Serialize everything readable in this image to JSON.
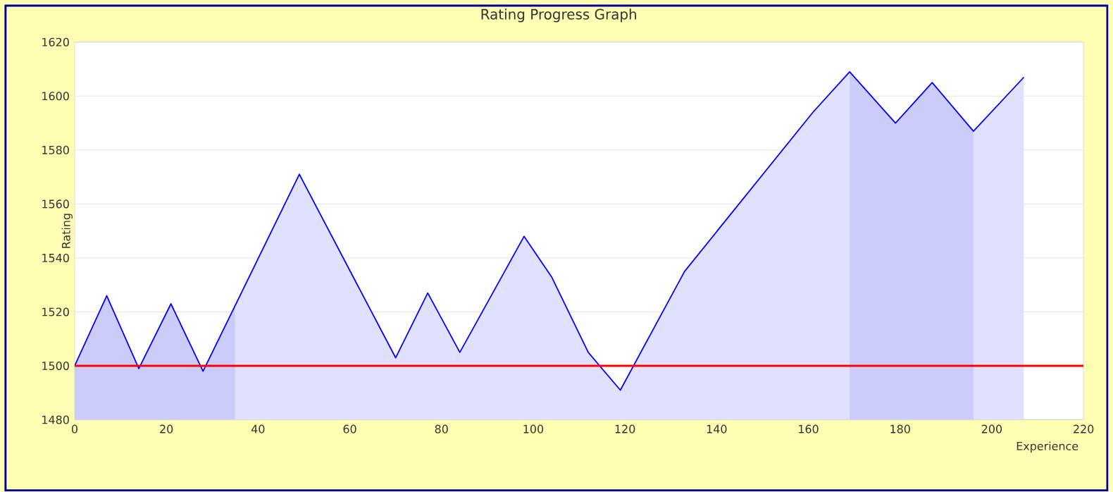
{
  "chart_data": {
    "type": "area",
    "title": "Rating Progress Graph",
    "xlabel": "Experience",
    "ylabel": "Rating",
    "x": [
      0,
      7,
      14,
      21,
      28,
      49,
      70,
      77,
      84,
      98,
      104,
      112,
      119,
      133,
      161,
      169,
      179,
      187,
      196,
      207
    ],
    "series": [
      {
        "color": "#0000ff",
        "values": [
          1500,
          1526,
          1499,
          1523,
          1498,
          1571,
          1503,
          1527,
          1505,
          1548,
          1533,
          1505,
          1491,
          1535,
          1594,
          1609,
          1590,
          1605,
          1587,
          1607
        ]
      },
      {
        "color": "#ccccfa",
        "x": [
          0,
          7,
          14,
          21,
          28,
          35
        ],
        "values": [
          1500,
          1526,
          1499,
          1523,
          1498,
          1522
        ]
      },
      {
        "color": "#ccccfa",
        "x": [
          169,
          179,
          187,
          196
        ],
        "values": [
          1609,
          1590,
          1605,
          1587
        ]
      }
    ],
    "xlim": [
      0,
      220
    ],
    "xticks": [
      0,
      20,
      40,
      60,
      80,
      100,
      120,
      140,
      160,
      180,
      200,
      220
    ],
    "ylim": [
      1480,
      1620
    ],
    "yticks": [
      1480,
      1500,
      1520,
      1540,
      1560,
      1580,
      1600,
      1620
    ],
    "ref_lines": [
      {
        "axis": "y",
        "value": 1500,
        "color": "#ff0000"
      }
    ],
    "grid": "y",
    "marker": "none",
    "line_style": "solid"
  }
}
